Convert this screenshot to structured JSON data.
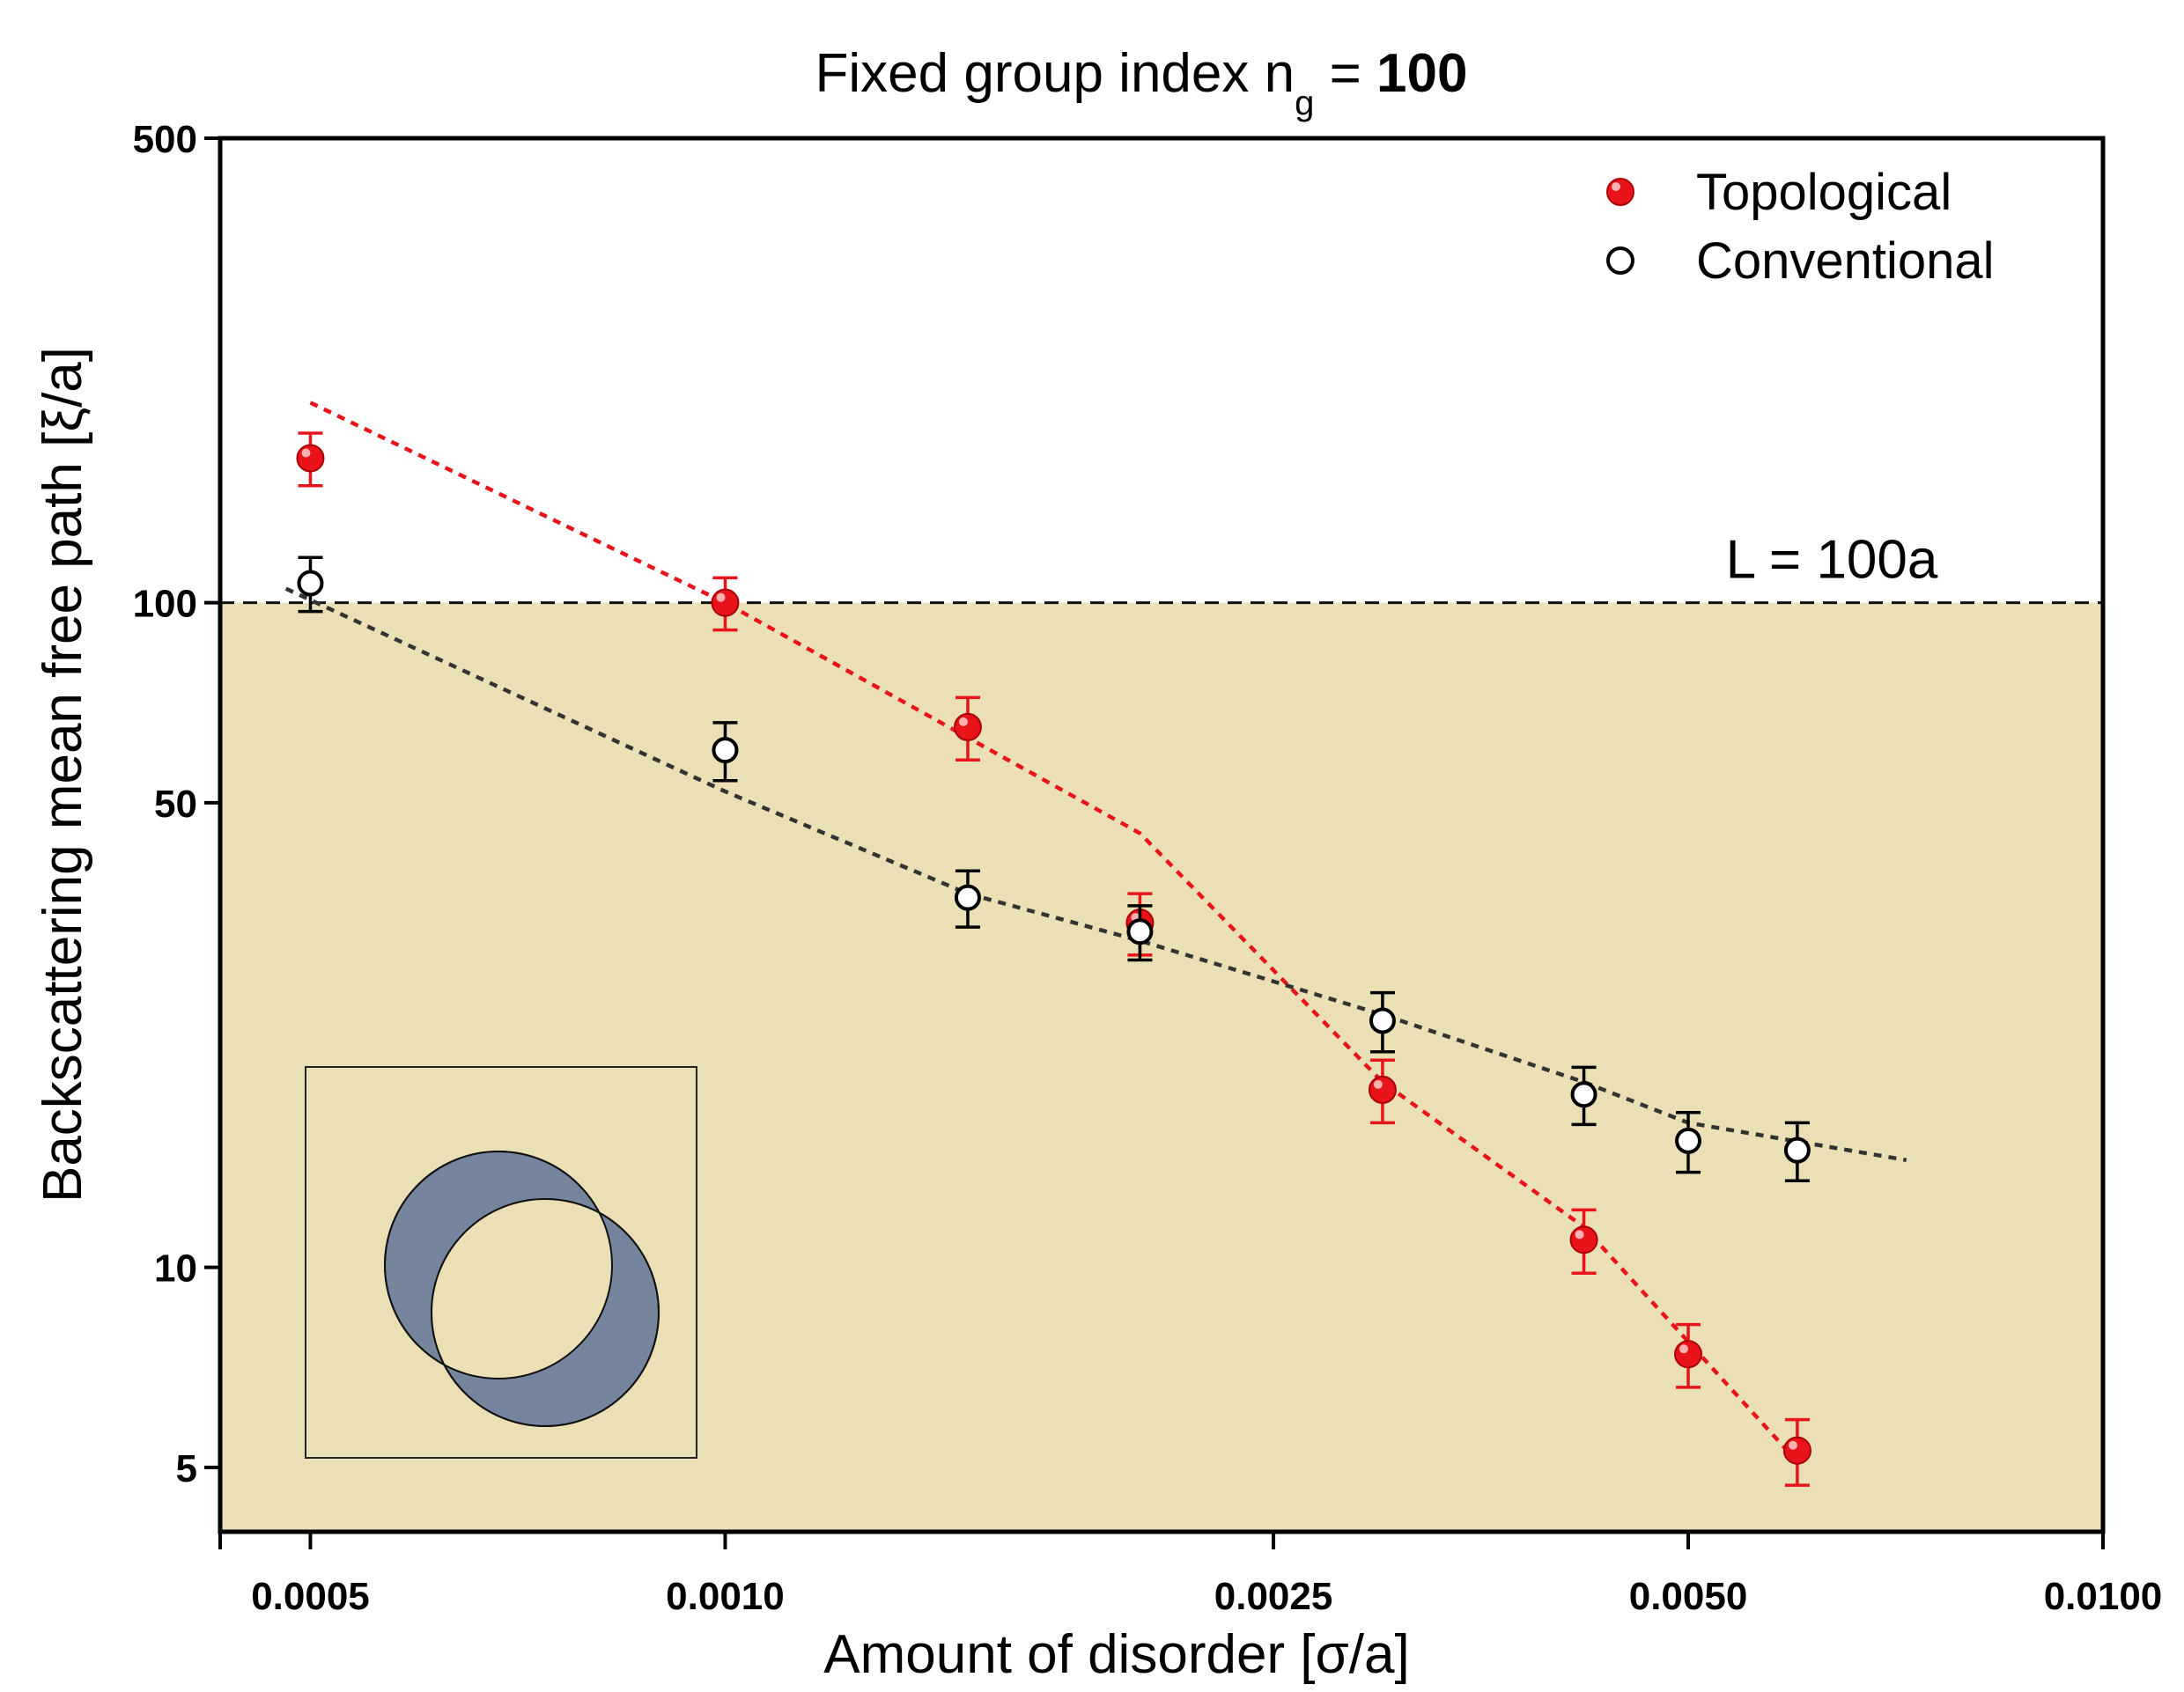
{
  "chart_data": {
    "type": "scatter",
    "title": {
      "prefix": "Fixed group index n",
      "subscript": "g",
      "eq": " = ",
      "value": "100"
    },
    "xlabel": "Amount of disorder [σ/a]",
    "ylabel": "Backscattering mean free path [ξ/a]",
    "xscale": "log",
    "yscale": "log",
    "xlim": [
      0.00043,
      0.01
    ],
    "ylim": [
      4,
      500
    ],
    "x_ticks": [
      {
        "value": 0.0005,
        "label": "0.0005"
      },
      {
        "value": 0.001,
        "label": "0.0010"
      },
      {
        "value": 0.0025,
        "label": "0.0025"
      },
      {
        "value": 0.005,
        "label": "0.0050"
      },
      {
        "value": 0.01,
        "label": "0.0100"
      }
    ],
    "y_ticks": [
      {
        "value": 5,
        "label": "5"
      },
      {
        "value": 10,
        "label": "10"
      },
      {
        "value": 50,
        "label": "50"
      },
      {
        "value": 100,
        "label": "100"
      },
      {
        "value": 500,
        "label": "500"
      }
    ],
    "threshold": {
      "value": 100,
      "label": "L = 100a"
    },
    "legend_position": "top-right",
    "series": [
      {
        "name": "Topological",
        "color": "#e8141a",
        "marker": "filled-circle",
        "points": [
          {
            "x": 0.0005,
            "y": 165,
            "err": 15
          },
          {
            "x": 0.001,
            "y": 100,
            "err": 9
          },
          {
            "x": 0.0015,
            "y": 65,
            "err": 7
          },
          {
            "x": 0.002,
            "y": 33,
            "err": 3.5
          },
          {
            "x": 0.003,
            "y": 18.5,
            "err": 2
          },
          {
            "x": 0.0042,
            "y": 11,
            "err": 1.2
          },
          {
            "x": 0.005,
            "y": 7.4,
            "err": 0.8
          },
          {
            "x": 0.006,
            "y": 5.3,
            "err": 0.6
          }
        ],
        "fit": [
          {
            "x": 0.0005,
            "y": 200
          },
          {
            "x": 0.001,
            "y": 100
          },
          {
            "x": 0.002,
            "y": 45
          },
          {
            "x": 0.003,
            "y": 19
          },
          {
            "x": 0.0042,
            "y": 11.5
          },
          {
            "x": 0.006,
            "y": 5.1
          }
        ]
      },
      {
        "name": "Conventional",
        "color": "#000000",
        "marker": "open-circle",
        "points": [
          {
            "x": 0.0005,
            "y": 107,
            "err": 10
          },
          {
            "x": 0.001,
            "y": 60,
            "err": 6
          },
          {
            "x": 0.0015,
            "y": 36,
            "err": 3.5
          },
          {
            "x": 0.002,
            "y": 32,
            "err": 3
          },
          {
            "x": 0.003,
            "y": 23.5,
            "err": 2.4
          },
          {
            "x": 0.0042,
            "y": 18.2,
            "err": 1.8
          },
          {
            "x": 0.005,
            "y": 15.5,
            "err": 1.6
          },
          {
            "x": 0.006,
            "y": 15,
            "err": 1.5
          }
        ],
        "fit": [
          {
            "x": 0.00048,
            "y": 105
          },
          {
            "x": 0.001,
            "y": 52
          },
          {
            "x": 0.0015,
            "y": 36.5
          },
          {
            "x": 0.002,
            "y": 31
          },
          {
            "x": 0.003,
            "y": 24
          },
          {
            "x": 0.0042,
            "y": 19
          },
          {
            "x": 0.005,
            "y": 16.5
          },
          {
            "x": 0.0072,
            "y": 14.5
          }
        ]
      }
    ]
  },
  "colors": {
    "shaded_region": "#ebdfb5",
    "inset_circle": "#76859e",
    "inset_overlay": "#ebdfb5"
  }
}
